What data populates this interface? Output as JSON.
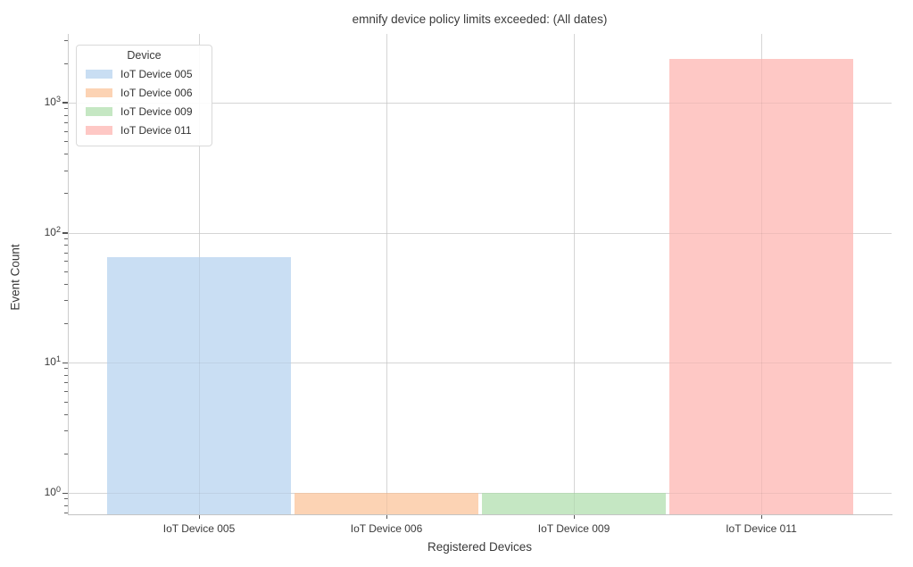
{
  "chart_data": {
    "type": "bar",
    "title": "emnify device policy limits exceeded: (All dates)",
    "xlabel": "Registered Devices",
    "ylabel": "Event Count",
    "categories": [
      "IoT Device 005",
      "IoT Device 006",
      "IoT Device 009",
      "IoT Device 011"
    ],
    "values": [
      65,
      1,
      1,
      2170
    ],
    "bar_colors": [
      "#c9def3",
      "#fcd3b4",
      "#c5e7c3",
      "#fec8c5"
    ],
    "yscale": "log",
    "ylim": [
      0.68,
      3400
    ],
    "y_major_ticks": [
      1,
      10,
      100,
      1000
    ],
    "grid": true,
    "gridline_color": "#e2e2e2",
    "legend": {
      "title": "Device",
      "position": "upper left",
      "entries": [
        {
          "label": "IoT Device 005",
          "color": "#c9def3"
        },
        {
          "label": "IoT Device 006",
          "color": "#fcd3b4"
        },
        {
          "label": "IoT Device 009",
          "color": "#c5e7c3"
        },
        {
          "label": "IoT Device 011",
          "color": "#fec8c5"
        }
      ]
    }
  }
}
